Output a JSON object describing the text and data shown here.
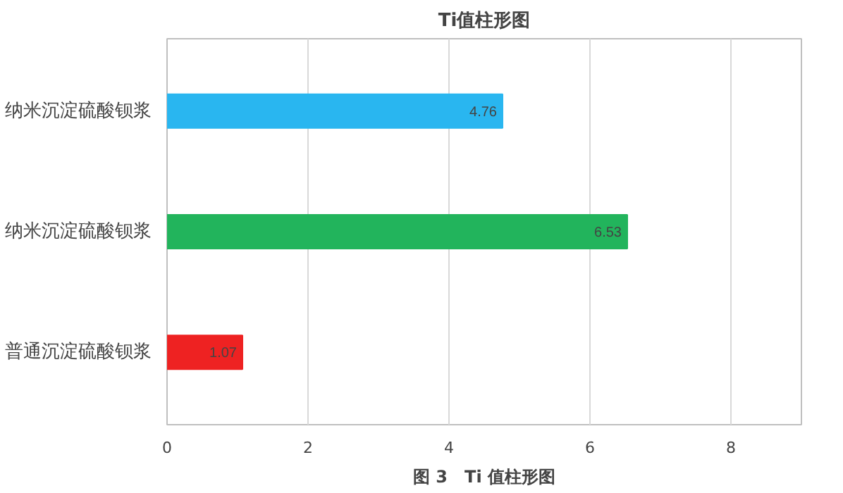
{
  "chart_data": {
    "type": "bar",
    "orientation": "horizontal",
    "title": "Ti值柱形图",
    "categories": [
      "纳米沉淀硫酸钡浆",
      "纳米沉淀硫酸钡浆",
      "普通沉淀硫酸钡浆"
    ],
    "values": [
      4.76,
      6.53,
      1.07
    ],
    "colors": [
      "#29b6f0",
      "#22b45c",
      "#ee2222"
    ],
    "xlim": [
      0,
      9
    ],
    "xticks": [
      0,
      2,
      4,
      6,
      8
    ],
    "grid": "x",
    "data_labels": true,
    "annotations": [
      "图 3　Ti 值柱形图"
    ]
  }
}
